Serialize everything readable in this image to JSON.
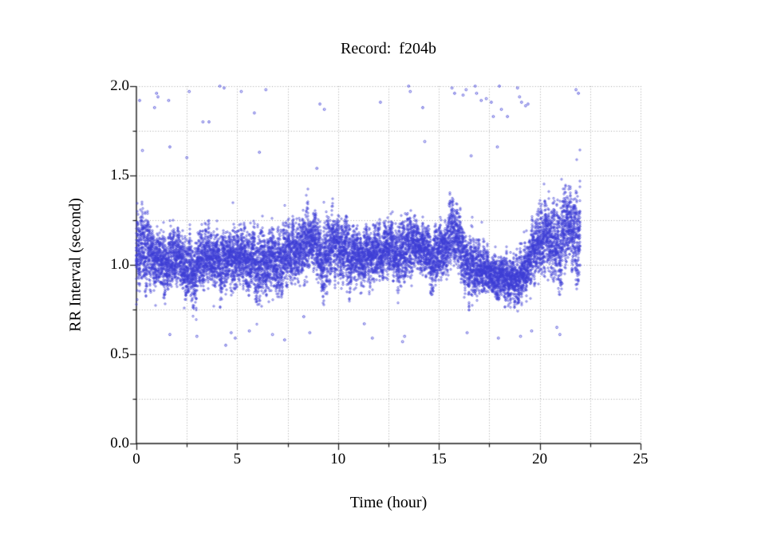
{
  "figure": {
    "background": "#ffffff",
    "axis_color": "#1a1a1a"
  },
  "chart_data": {
    "type": "scatter",
    "title": "Record:  f204b",
    "xlabel": "Time (hour)",
    "ylabel": "RR Interval (second)",
    "xlim": [
      0,
      25
    ],
    "ylim": [
      0.0,
      2.0
    ],
    "x_major_ticks": [
      0,
      5,
      10,
      15,
      20,
      25
    ],
    "x_tick_labels": [
      "0",
      "5",
      "10",
      "15",
      "20",
      "25"
    ],
    "x_minor_step": 2.5,
    "y_major_ticks": [
      0.0,
      0.5,
      1.0,
      1.5,
      2.0
    ],
    "y_tick_labels": [
      "0.0",
      "0.5",
      "1.0",
      "1.5",
      "2.0"
    ],
    "y_minor_step": 0.25,
    "grid": {
      "visible": true,
      "style": "dotted",
      "color": "#a9a9a9",
      "x_step": 2.5,
      "y_step": 0.25
    },
    "marker": "open-circle",
    "point_color": "#3d3dd6",
    "data_start_hour": 0.0,
    "data_end_hour": 22.0,
    "band_bins": {
      "t_start": 0.0,
      "t_step": 0.5,
      "lo": [
        0.72,
        0.8,
        0.74,
        0.82,
        0.78,
        0.7,
        0.75,
        0.8,
        0.76,
        0.8,
        0.8,
        0.78,
        0.72,
        0.78,
        0.76,
        0.8,
        0.82,
        0.84,
        0.76,
        0.82,
        0.82,
        0.84,
        0.8,
        0.82,
        0.84,
        0.82,
        0.8,
        0.82,
        0.84,
        0.78,
        0.84,
        0.86,
        0.76,
        0.72,
        0.78,
        0.74,
        0.7,
        0.7,
        0.74,
        0.8,
        0.86,
        0.82,
        0.84,
        0.86
      ],
      "hi": [
        1.42,
        1.3,
        1.26,
        1.3,
        1.28,
        1.24,
        1.28,
        1.3,
        1.28,
        1.3,
        1.32,
        1.3,
        1.28,
        1.3,
        1.3,
        1.32,
        1.38,
        1.4,
        1.32,
        1.42,
        1.34,
        1.3,
        1.3,
        1.3,
        1.32,
        1.3,
        1.3,
        1.4,
        1.32,
        1.3,
        1.34,
        1.5,
        1.36,
        1.24,
        1.18,
        1.14,
        1.12,
        1.14,
        1.18,
        1.38,
        1.5,
        1.42,
        1.52,
        1.56
      ]
    },
    "dips": [
      {
        "t": 1.35,
        "v": 0.66
      },
      {
        "t": 2.75,
        "v": 0.62
      },
      {
        "t": 2.9,
        "v": 0.66
      },
      {
        "t": 4.2,
        "v": 0.68
      },
      {
        "t": 6.0,
        "v": 0.6
      },
      {
        "t": 6.15,
        "v": 0.66
      },
      {
        "t": 7.05,
        "v": 0.68
      },
      {
        "t": 9.3,
        "v": 0.62
      },
      {
        "t": 10.6,
        "v": 0.74
      },
      {
        "t": 11.3,
        "v": 0.7
      },
      {
        "t": 13.0,
        "v": 0.72
      },
      {
        "t": 14.7,
        "v": 0.72
      },
      {
        "t": 16.5,
        "v": 0.64
      },
      {
        "t": 17.8,
        "v": 0.68
      },
      {
        "t": 18.3,
        "v": 0.7
      },
      {
        "t": 19.0,
        "v": 0.72
      },
      {
        "t": 21.0,
        "v": 0.72
      },
      {
        "t": 21.9,
        "v": 0.7
      }
    ],
    "bursts": [
      {
        "t": 0.12,
        "v": 1.48
      },
      {
        "t": 8.5,
        "v": 1.44
      },
      {
        "t": 9.7,
        "v": 1.46
      },
      {
        "t": 13.6,
        "v": 1.46
      },
      {
        "t": 15.6,
        "v": 1.54
      },
      {
        "t": 20.3,
        "v": 1.54
      },
      {
        "t": 21.4,
        "v": 1.56
      },
      {
        "t": 21.7,
        "v": 1.58
      }
    ],
    "outliers_high": [
      [
        0.16,
        1.92
      ],
      [
        0.3,
        1.64
      ],
      [
        0.9,
        1.88
      ],
      [
        1.0,
        1.96
      ],
      [
        1.07,
        1.94
      ],
      [
        1.6,
        1.92
      ],
      [
        1.66,
        1.66
      ],
      [
        2.5,
        1.6
      ],
      [
        2.62,
        1.97
      ],
      [
        3.3,
        1.8
      ],
      [
        3.6,
        1.8
      ],
      [
        4.14,
        2.0
      ],
      [
        4.35,
        1.99
      ],
      [
        5.2,
        1.97
      ],
      [
        5.85,
        1.85
      ],
      [
        6.1,
        1.63
      ],
      [
        6.42,
        1.98
      ],
      [
        8.95,
        1.54
      ],
      [
        9.1,
        1.9
      ],
      [
        9.32,
        1.87
      ],
      [
        12.1,
        1.91
      ],
      [
        13.5,
        2.0
      ],
      [
        13.58,
        1.97
      ],
      [
        14.2,
        1.88
      ],
      [
        14.3,
        1.69
      ],
      [
        15.65,
        1.99
      ],
      [
        15.78,
        1.96
      ],
      [
        16.2,
        1.95
      ],
      [
        16.35,
        1.98
      ],
      [
        16.6,
        1.61
      ],
      [
        16.8,
        2.0
      ],
      [
        16.87,
        1.96
      ],
      [
        17.1,
        1.92
      ],
      [
        17.35,
        1.93
      ],
      [
        17.6,
        1.91
      ],
      [
        17.7,
        1.83
      ],
      [
        17.9,
        1.66
      ],
      [
        18.0,
        2.0
      ],
      [
        18.1,
        1.87
      ],
      [
        18.4,
        1.83
      ],
      [
        18.9,
        1.99
      ],
      [
        19.0,
        1.94
      ],
      [
        19.1,
        1.91
      ],
      [
        19.3,
        1.89
      ],
      [
        19.42,
        1.9
      ],
      [
        21.8,
        1.98
      ],
      [
        21.92,
        1.96
      ]
    ],
    "outliers_low": [
      [
        1.66,
        0.61
      ],
      [
        3.0,
        0.6
      ],
      [
        4.43,
        0.55
      ],
      [
        4.7,
        0.62
      ],
      [
        4.9,
        0.59
      ],
      [
        5.6,
        0.63
      ],
      [
        6.75,
        0.61
      ],
      [
        7.35,
        0.58
      ],
      [
        8.3,
        0.71
      ],
      [
        8.6,
        0.62
      ],
      [
        11.3,
        0.67
      ],
      [
        11.7,
        0.59
      ],
      [
        13.2,
        0.57
      ],
      [
        13.3,
        0.6
      ],
      [
        16.4,
        0.62
      ],
      [
        17.95,
        0.59
      ],
      [
        19.05,
        0.6
      ],
      [
        19.6,
        0.63
      ],
      [
        20.85,
        0.65
      ],
      [
        21.0,
        0.61
      ]
    ]
  }
}
